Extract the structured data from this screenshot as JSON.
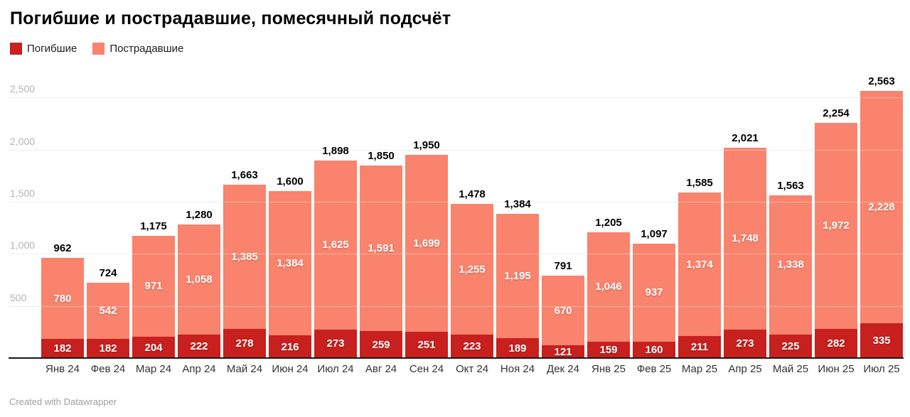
{
  "header": {
    "title": "Погибшие и пострадавшие, помесячный подсчёт"
  },
  "footer": {
    "text": "Created with Datawrapper"
  },
  "chart_data": {
    "type": "bar",
    "stacked": true,
    "title": "Погибшие и пострадавшие, помесячный подсчёт",
    "categories": [
      "Янв 24",
      "Фев 24",
      "Мар 24",
      "Апр 24",
      "Май 24",
      "Июн 24",
      "Июл 24",
      "Авг 24",
      "Сен 24",
      "Окт 24",
      "Ноя 24",
      "Дек 24",
      "Янв 25",
      "Фев 25",
      "Мар 25",
      "Апр 25",
      "Май 25",
      "Июн 25",
      "Июл 25"
    ],
    "series": [
      {
        "name": "Погибшие",
        "color": "#c7201e",
        "values": [
          182,
          182,
          204,
          222,
          278,
          216,
          273,
          259,
          251,
          223,
          189,
          121,
          159,
          160,
          211,
          273,
          225,
          282,
          335
        ]
      },
      {
        "name": "Пострадавшие",
        "color": "#f9836c",
        "values": [
          780,
          542,
          971,
          1058,
          1385,
          1384,
          1625,
          1591,
          1699,
          1255,
          1195,
          670,
          1046,
          937,
          1374,
          1748,
          1338,
          1972,
          2228
        ]
      }
    ],
    "totals": [
      962,
      724,
      1175,
      1280,
      1663,
      1600,
      1898,
      1850,
      1950,
      1478,
      1384,
      791,
      1205,
      1097,
      1585,
      2021,
      1563,
      2254,
      2563
    ],
    "y_ticks": [
      500,
      1000,
      1500,
      2000,
      2500
    ],
    "ylim": [
      0,
      2750
    ],
    "grid": "horizontal",
    "legend_position": "top-left",
    "value_format": "thousands-comma",
    "xlabel": "",
    "ylabel": ""
  }
}
